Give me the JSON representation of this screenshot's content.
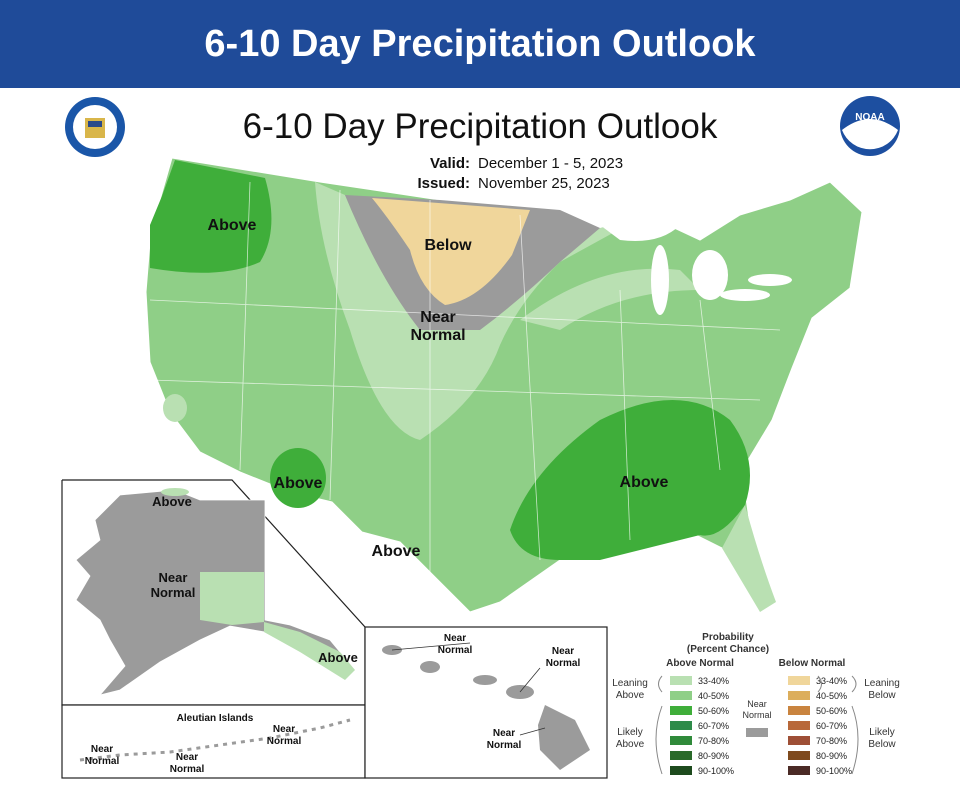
{
  "banner": {
    "title": "6-10 Day Precipitation Outlook"
  },
  "map": {
    "title": "6-10 Day Precipitation Outlook",
    "valid_label": "Valid:",
    "valid": "December 1 - 5, 2023",
    "issued_label": "Issued:",
    "issued": "November 25, 2023",
    "regions": [
      {
        "lines": [
          "Above"
        ]
      },
      {
        "lines": [
          "Below"
        ]
      },
      {
        "lines": [
          "Near",
          "Normal"
        ]
      },
      {
        "lines": [
          "Above"
        ]
      },
      {
        "lines": [
          "Above"
        ]
      },
      {
        "lines": [
          "Above"
        ]
      }
    ]
  },
  "alaska": {
    "labels": [
      {
        "lines": [
          "Above"
        ]
      },
      {
        "lines": [
          "Near",
          "Normal"
        ]
      },
      {
        "lines": [
          "Above"
        ]
      }
    ]
  },
  "aleutians": {
    "title": "Aleutian Islands",
    "labels": [
      {
        "lines": [
          "Near",
          "Normal"
        ]
      },
      {
        "lines": [
          "Near",
          "Normal"
        ]
      },
      {
        "lines": [
          "Near",
          "Normal"
        ]
      }
    ]
  },
  "hawaii": {
    "labels": [
      {
        "lines": [
          "Near",
          "Normal"
        ]
      },
      {
        "lines": [
          "Near",
          "Normal"
        ]
      },
      {
        "lines": [
          "Near",
          "Normal"
        ]
      }
    ]
  },
  "legend": {
    "title": [
      "Probability",
      "(Percent Chance)"
    ],
    "above_heading": "Above Normal",
    "below_heading": "Below Normal",
    "leaning_above": [
      "Leaning",
      "Above"
    ],
    "likely_above": [
      "Likely",
      "Above"
    ],
    "near_normal": [
      "Near",
      "Normal"
    ],
    "leaning_below": [
      "Leaning",
      "Below"
    ],
    "likely_below": [
      "Likely",
      "Below"
    ],
    "above_bins": [
      "33-40%",
      "40-50%",
      "50-60%",
      "60-70%",
      "70-80%",
      "80-90%",
      "90-100%"
    ],
    "below_bins": [
      "33-40%",
      "40-50%",
      "50-60%",
      "60-70%",
      "70-80%",
      "80-90%",
      "90-100%"
    ],
    "above_colors": [
      "#b9e0b2",
      "#8fcf87",
      "#3fae3a",
      "#2e8b4a",
      "#2f8a3a",
      "#2a6a2a",
      "#1d4a1d"
    ],
    "below_colors": [
      "#f0d69b",
      "#dcae5c",
      "#c9843f",
      "#b8683a",
      "#9e4f36",
      "#7e4a1e",
      "#4a2a25"
    ],
    "near_normal_color": "#9b9b9b"
  }
}
